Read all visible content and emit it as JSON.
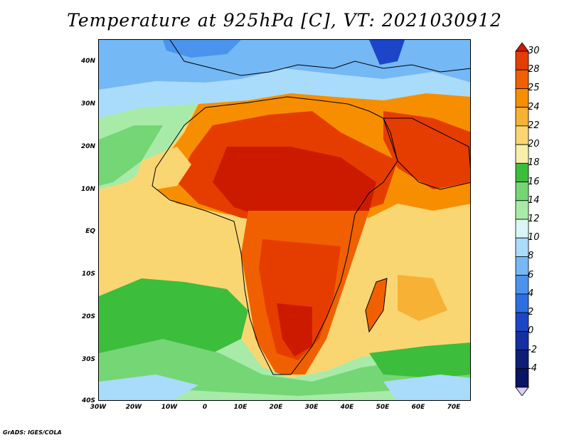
{
  "title": "Temperature at 925hPa [C], VT: 2021030912",
  "credit": "GrADS: IGES/COLA",
  "lat_labels": [
    "40N",
    "30N",
    "20N",
    "10N",
    "EQ",
    "10S",
    "20S",
    "30S",
    "40S"
  ],
  "lon_labels": [
    "30W",
    "20W",
    "10W",
    "0",
    "10E",
    "20E",
    "30E",
    "40E",
    "50E",
    "60E",
    "70E"
  ],
  "colorbar": {
    "labels": [
      "30",
      "28",
      "25",
      "24",
      "22",
      "20",
      "18",
      "16",
      "14",
      "12",
      "10",
      "8",
      "6",
      "4",
      "2",
      "0",
      "-2",
      "-4"
    ],
    "colors": [
      "#cc1a00",
      "#e53d00",
      "#f06000",
      "#f78e00",
      "#f7b135",
      "#fad672",
      "#f7f0a8",
      "#3cbd3c",
      "#74d674",
      "#a8eba8",
      "#daf5f5",
      "#a9dbfa",
      "#74b8f5",
      "#4a94ee",
      "#2c6fe0",
      "#1d45c8",
      "#142fa0",
      "#0d1e78",
      "#0a1564",
      "#d9d0f5"
    ]
  },
  "map": {
    "colors": {
      "ocean_hot": "#e53d00",
      "land_hot": "#cc1a00",
      "land_warm": "#f06000",
      "orange": "#f78e00",
      "light_orange": "#f7b135",
      "yellow": "#fad672",
      "pale_yellow": "#f7f0a8",
      "green": "#3cbd3c",
      "mid_green": "#74d674",
      "light_green": "#a8eba8",
      "cyan_pale": "#daf5f5",
      "light_blue": "#a9dbfa",
      "blue": "#74b8f5",
      "dark_blue": "#4a94ee"
    }
  }
}
